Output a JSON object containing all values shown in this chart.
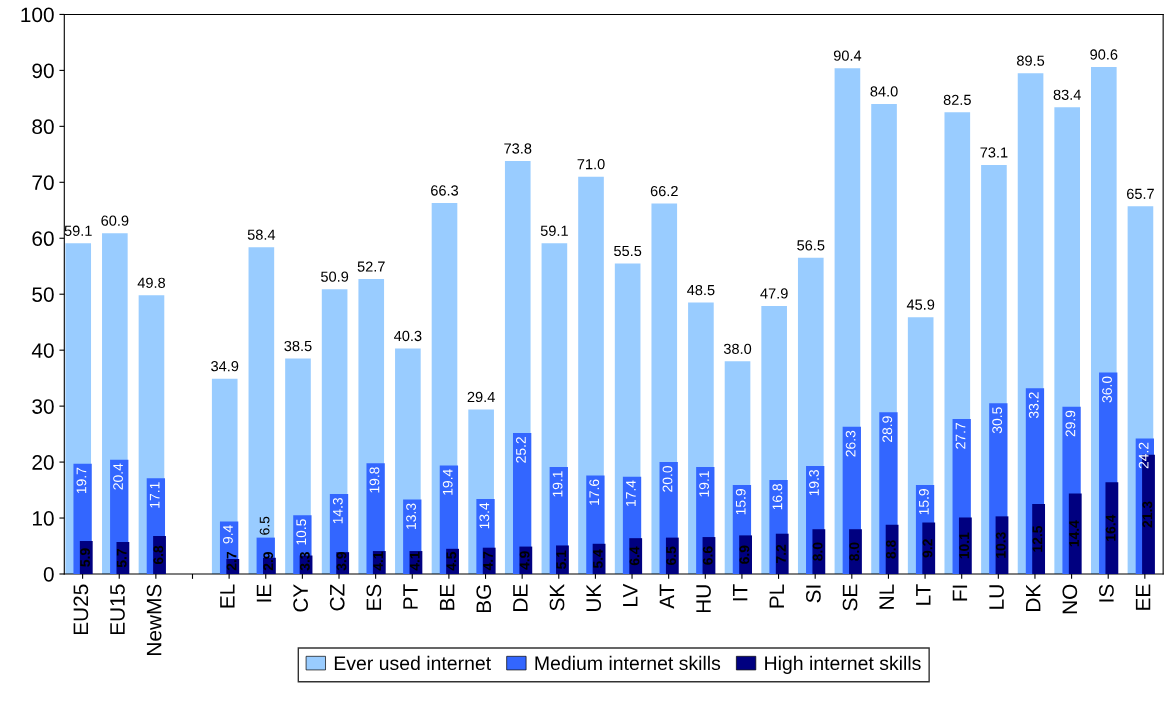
{
  "chart_data": {
    "type": "bar",
    "categories": [
      "EU25",
      "EU15",
      "NewMS",
      null,
      "EL",
      "IE",
      "CY",
      "CZ",
      "ES",
      "PT",
      "BE",
      "BG",
      "DE",
      "SK",
      "UK",
      "LV",
      "AT",
      "HU",
      "IT",
      "PL",
      "SI",
      "SE",
      "NL",
      "LT",
      "FI",
      "LU",
      "DK",
      "NO",
      "IS",
      "EE"
    ],
    "series": [
      {
        "name": "Ever used internet",
        "color": "#99ccff",
        "values": [
          59.1,
          60.9,
          49.8,
          null,
          34.9,
          58.4,
          38.5,
          50.9,
          52.7,
          40.3,
          66.3,
          29.4,
          73.8,
          59.1,
          71.0,
          55.5,
          66.2,
          48.5,
          38.0,
          47.9,
          56.5,
          90.4,
          84.0,
          45.9,
          82.5,
          73.1,
          89.5,
          83.4,
          90.6,
          65.7
        ],
        "value_labels": [
          "59.1",
          "60.9",
          "49.8",
          null,
          "34.9",
          "58.4",
          "38.5",
          "50.9",
          "52.7",
          "40.3",
          "66.3",
          "29.4",
          "73.8",
          "59.1",
          "71.0",
          "55.5",
          "66.2",
          "48.5",
          "38.0",
          "47.9",
          "56.5",
          "90.4",
          "84.0",
          "45.9",
          "82.5",
          "73.1",
          "89.5",
          "83.4",
          "90.6",
          "65.7"
        ]
      },
      {
        "name": "Medium internet skills",
        "color": "#3366ff",
        "values": [
          19.7,
          20.4,
          17.1,
          null,
          9.4,
          6.5,
          10.5,
          14.3,
          19.8,
          13.3,
          19.4,
          13.4,
          25.2,
          19.1,
          17.6,
          17.4,
          20.0,
          19.1,
          15.9,
          16.8,
          19.3,
          26.3,
          28.9,
          15.9,
          27.7,
          30.5,
          33.2,
          29.9,
          36.0,
          24.2
        ],
        "value_labels": [
          "19.7",
          "20.4",
          "17.1",
          null,
          "9.4",
          "6.5",
          "10.5",
          "14.3",
          "19.8",
          "13.3",
          "19.4",
          "13.4",
          "25.2",
          "19.1",
          "17.6",
          "17.4",
          "20.0",
          "19.1",
          "15.9",
          "16.8",
          "19.3",
          "26.3",
          "28.9",
          "15.9",
          "27.7",
          "30.5",
          "33.2",
          "29.9",
          "36.0",
          "24.2"
        ]
      },
      {
        "name": "High internet skills",
        "color": "#000080",
        "values": [
          5.9,
          5.7,
          6.8,
          null,
          2.7,
          2.9,
          3.3,
          3.9,
          4.1,
          4.1,
          4.5,
          4.7,
          4.9,
          5.1,
          5.4,
          6.4,
          6.5,
          6.6,
          6.9,
          7.2,
          8.0,
          8.0,
          8.8,
          9.2,
          10.1,
          10.3,
          12.5,
          14.4,
          16.4,
          21.3
        ],
        "value_labels": [
          "5.9",
          "5.7",
          "6.8",
          null,
          "2.7",
          "2.9",
          "3.3",
          "3.9",
          "4.1",
          "4.1",
          "4.5",
          "4.7",
          "4.9",
          "5.1",
          "5.4",
          "6.4",
          "6.5",
          "6.6",
          "6.9",
          "7.2",
          "8.0",
          "8.0",
          "8.8",
          "9.2",
          "10.1",
          "10.3",
          "12.5",
          "14.4",
          "16.4",
          "21.3"
        ]
      }
    ],
    "ylim": [
      0,
      100
    ],
    "yticks": [
      0,
      10,
      20,
      30,
      40,
      50,
      60,
      70,
      80,
      90,
      100
    ],
    "legend": "bottom",
    "grid": false
  }
}
